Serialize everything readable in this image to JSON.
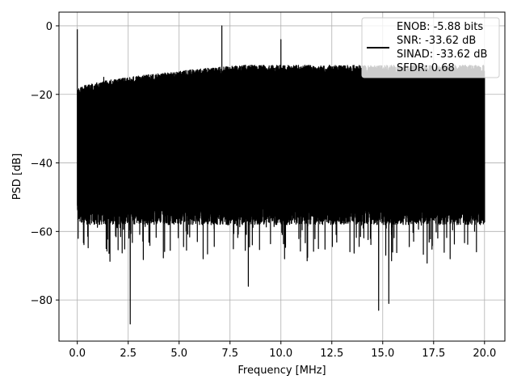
{
  "chart_data": {
    "type": "line",
    "title": "",
    "xlabel": "Frequency [MHz]",
    "ylabel": "PSD [dB]",
    "xlim": [
      -0.9,
      21.0
    ],
    "ylim": [
      -92,
      4
    ],
    "x_ticks": [
      0.0,
      2.5,
      5.0,
      7.5,
      10.0,
      12.5,
      15.0,
      17.5,
      20.0
    ],
    "x_tick_labels": [
      "0.0",
      "2.5",
      "5.0",
      "7.5",
      "10.0",
      "12.5",
      "15.0",
      "17.5",
      "20.0"
    ],
    "y_ticks": [
      0,
      -20,
      -40,
      -60,
      -80
    ],
    "y_tick_labels": [
      "0",
      "−20",
      "−40",
      "−60",
      "−80"
    ],
    "grid": true,
    "line_color": "#000000",
    "legend_position": "top-right",
    "series": [
      {
        "color": "#000000",
        "noise_floor_start": -20,
        "noise_floor_end": -13,
        "typical_min_db": -55,
        "x": [
          0.0,
          0.05,
          0.08,
          0.12,
          1.0,
          1.3,
          2.5,
          2.6,
          7.1,
          7.2,
          8.4,
          10.0,
          14.8,
          15.3,
          20.0
        ],
        "y": [
          -1,
          -37,
          -20,
          -40,
          -18,
          -15,
          -55,
          -87,
          0,
          -22,
          -76,
          -4,
          -83,
          -81,
          -15
        ]
      }
    ],
    "legend": {
      "entries": [
        "ENOB: -5.88 bits",
        "SNR: -33.62 dB",
        "SINAD: -33.62 dB",
        "SFDR: 0.68"
      ]
    }
  }
}
